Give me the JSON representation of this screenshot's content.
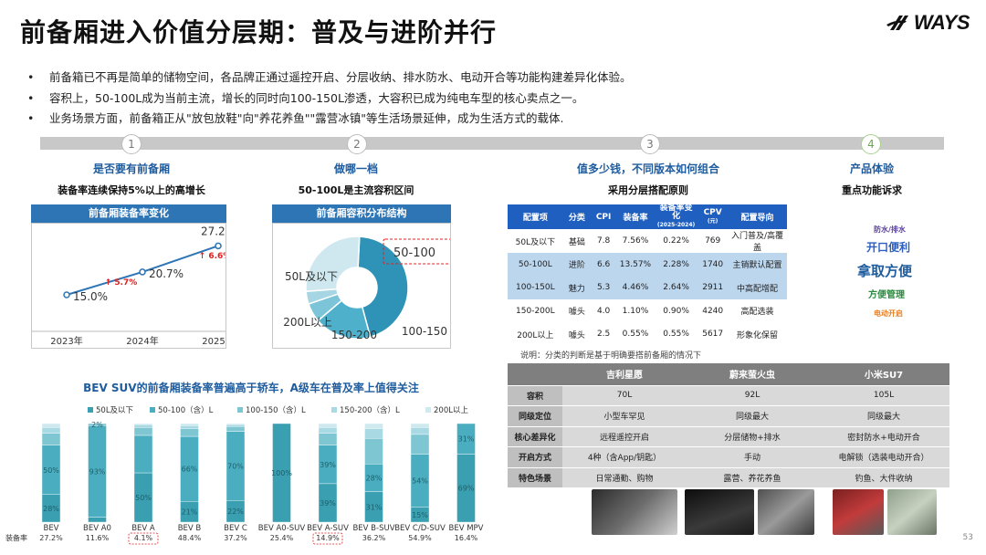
{
  "title": "前备厢进入价值分层期：普及与进阶并行",
  "logo": {
    "text": "WAYS",
    "icon": "ways-logo-icon"
  },
  "bullets": [
    "前备箱已不再是简单的储物空间，各品牌正通过遥控开启、分层收纳、排水防水、电动开合等功能构建差异化体验。",
    "容积上，50-100L成为当前主流，增长的同时向100-150L渗透，大容积已成为纯电车型的核心卖点之一。",
    "业务场景方面，前备箱正从\"放包放鞋\"向\"养花养鱼\"\"露营冰镇\"等生活场景延伸，成为生活方式的载体."
  ],
  "bullet_marker": "•",
  "watermark": "WAYS",
  "steps": [
    {
      "num": "1",
      "head": "是否要有前备厢",
      "sub": "装备率连续保持5%以上的高增长"
    },
    {
      "num": "2",
      "head": "做哪一档",
      "sub": "50-100L是主流容积区间"
    },
    {
      "num": "3",
      "head": "值多少钱，不同版本如何组合",
      "sub": "采用分层搭配原则"
    },
    {
      "num": "4",
      "head": "产品体验",
      "sub": "重点功能诉求"
    }
  ],
  "line_title": "前备厢装备率变化",
  "donut_title": "前备厢容积分布结构",
  "bev_title": "BEV SUV的前备厢装备率普遍高于轿车，A级车在普及率上值得关注",
  "cfg_table": {
    "headers": [
      "配置项",
      "分类",
      "CPI",
      "装备率",
      "装备率变化(2025-2024)",
      "CPV(元)",
      "配置导向"
    ],
    "header_main": [
      "配置项",
      "分类",
      "CPI",
      "装备率",
      "装备率变化",
      "CPV",
      "配置导向"
    ],
    "header_sub": [
      "",
      "",
      "",
      "",
      "(2025-2024)",
      "(元)",
      ""
    ],
    "rows": [
      [
        "50L及以下",
        "基础",
        "7.8",
        "7.56%",
        "0.22%",
        "769",
        "入门普及/高覆盖"
      ],
      [
        "50-100L",
        "进阶",
        "6.6",
        "13.57%",
        "2.28%",
        "1740",
        "主销默认配置"
      ],
      [
        "100-150L",
        "魅力",
        "5.3",
        "4.46%",
        "2.64%",
        "2911",
        "中高配增配"
      ],
      [
        "150-200L",
        "噱头",
        "4.0",
        "1.10%",
        "0.90%",
        "4240",
        "高配选装"
      ],
      [
        "200L以上",
        "噱头",
        "2.5",
        "0.55%",
        "0.55%",
        "5617",
        "形象化保留"
      ]
    ],
    "note": "说明：分类的判断是基于明确要搭前备厢的情况下"
  },
  "cmp_table": {
    "headers": [
      "",
      "吉利星愿",
      "蔚来萤火虫",
      "小米SU7"
    ],
    "rows": [
      [
        "容积",
        "70L",
        "92L",
        "105L"
      ],
      [
        "同级定位",
        "小型车罕见",
        "同级最大",
        "同级最大"
      ],
      [
        "核心差异化",
        "远程遥控开启",
        "分层储物+排水",
        "密封防水+电动开合"
      ],
      [
        "开启方式",
        "4种（含App/钥匙）",
        "手动",
        "电解锁（选装电动开合）"
      ],
      [
        "特色场景",
        "日常通勤、购物",
        "露营、养花养鱼",
        "钓鱼、大件收纳"
      ]
    ]
  },
  "wordcloud": [
    {
      "text": "防水/排水",
      "color": "#5b3fa0",
      "size": 8
    },
    {
      "text": "开口便利",
      "color": "#2e5fbf",
      "size": 12
    },
    {
      "text": "拿取方便",
      "color": "#1f5c9e",
      "size": 15
    },
    {
      "text": "方便管理",
      "color": "#2b8a3e",
      "size": 10
    },
    {
      "text": "电动开启",
      "color": "#e67e22",
      "size": 8
    }
  ],
  "page_number": "53",
  "colors": {
    "accent": "#2e75b6",
    "red": "#e02020",
    "teal1": "#3a9fb0",
    "teal2": "#6fbdcc",
    "teal3": "#a6d8e2",
    "teal4": "#cde9ef",
    "teal5": "#e3f2f6",
    "cfg_header": "#1f5fbf",
    "cfg_highlight": "#bcd6ee",
    "cmp_header": "#7f7f7f"
  },
  "chart_data": [
    {
      "type": "line",
      "title": "前备厢装备率变化",
      "x": [
        "2023年",
        "2024年",
        "2025年"
      ],
      "series": [
        {
          "values": [
            15.0,
            20.7,
            27.2
          ]
        }
      ],
      "value_labels": [
        "15.0%",
        "20.7%",
        "27.2%"
      ],
      "annotations": [
        "↑ 5.7%",
        "↑ 6.6%"
      ],
      "ylim": [
        10,
        30
      ],
      "grid": false
    },
    {
      "type": "pie",
      "title": "前备厢容积分布结构",
      "categories": [
        "50-100",
        "100-150",
        "150-200",
        "200L以上",
        "50L及以下"
      ],
      "values": [
        45,
        18,
        6,
        4,
        27
      ],
      "highlight": "50-100",
      "donut": true
    },
    {
      "type": "bar",
      "stacked": true,
      "percent": true,
      "title": "BEV SUV的前备厢装备率普遍高于轿车，A级车在普及率上值得关注",
      "categories": [
        "BEV",
        "BEV A0",
        "BEV A",
        "BEV B",
        "BEV C",
        "BEV A0-SUV",
        "BEV A-SUV",
        "BEV B-SUV",
        "BEV C/D-SUV",
        "BEV MPV"
      ],
      "series": [
        {
          "name": "50L及以下",
          "values": [
            28,
            5,
            50,
            21,
            22,
            100,
            39,
            31,
            15,
            69
          ]
        },
        {
          "name": "50-100（含）L",
          "values": [
            50,
            93,
            38,
            66,
            70,
            0,
            39,
            28,
            54,
            31
          ]
        },
        {
          "name": "100-150（含）L",
          "values": [
            12,
            2,
            8,
            8,
            5,
            0,
            12,
            26,
            20,
            0
          ]
        },
        {
          "name": "150-200（含）L",
          "values": [
            6,
            0,
            3,
            3,
            2,
            0,
            6,
            10,
            7,
            0
          ]
        },
        {
          "name": "200L以上",
          "values": [
            4,
            0,
            1,
            2,
            1,
            0,
            4,
            5,
            4,
            0
          ]
        }
      ],
      "segment_labels": [
        [
          "28%",
          "",
          "50%",
          "21%",
          "22%",
          "100%",
          "39%",
          "31%",
          "15%",
          "69%"
        ],
        [
          "50%",
          "93%",
          "",
          "66%",
          "70%",
          "",
          "39%",
          "28%",
          "54%",
          "31%"
        ],
        [
          "",
          "2%",
          "",
          "",
          "",
          "",
          "",
          "",
          "",
          ""
        ]
      ],
      "rate_label": "装备率",
      "rates": [
        "27.2%",
        "11.6%",
        "4.1%",
        "48.4%",
        "37.2%",
        "25.4%",
        "14.9%",
        "36.2%",
        "54.9%",
        "16.4%"
      ],
      "highlighted_rates": [
        2,
        6
      ],
      "ylim": [
        0,
        100
      ],
      "legend": "top"
    }
  ]
}
